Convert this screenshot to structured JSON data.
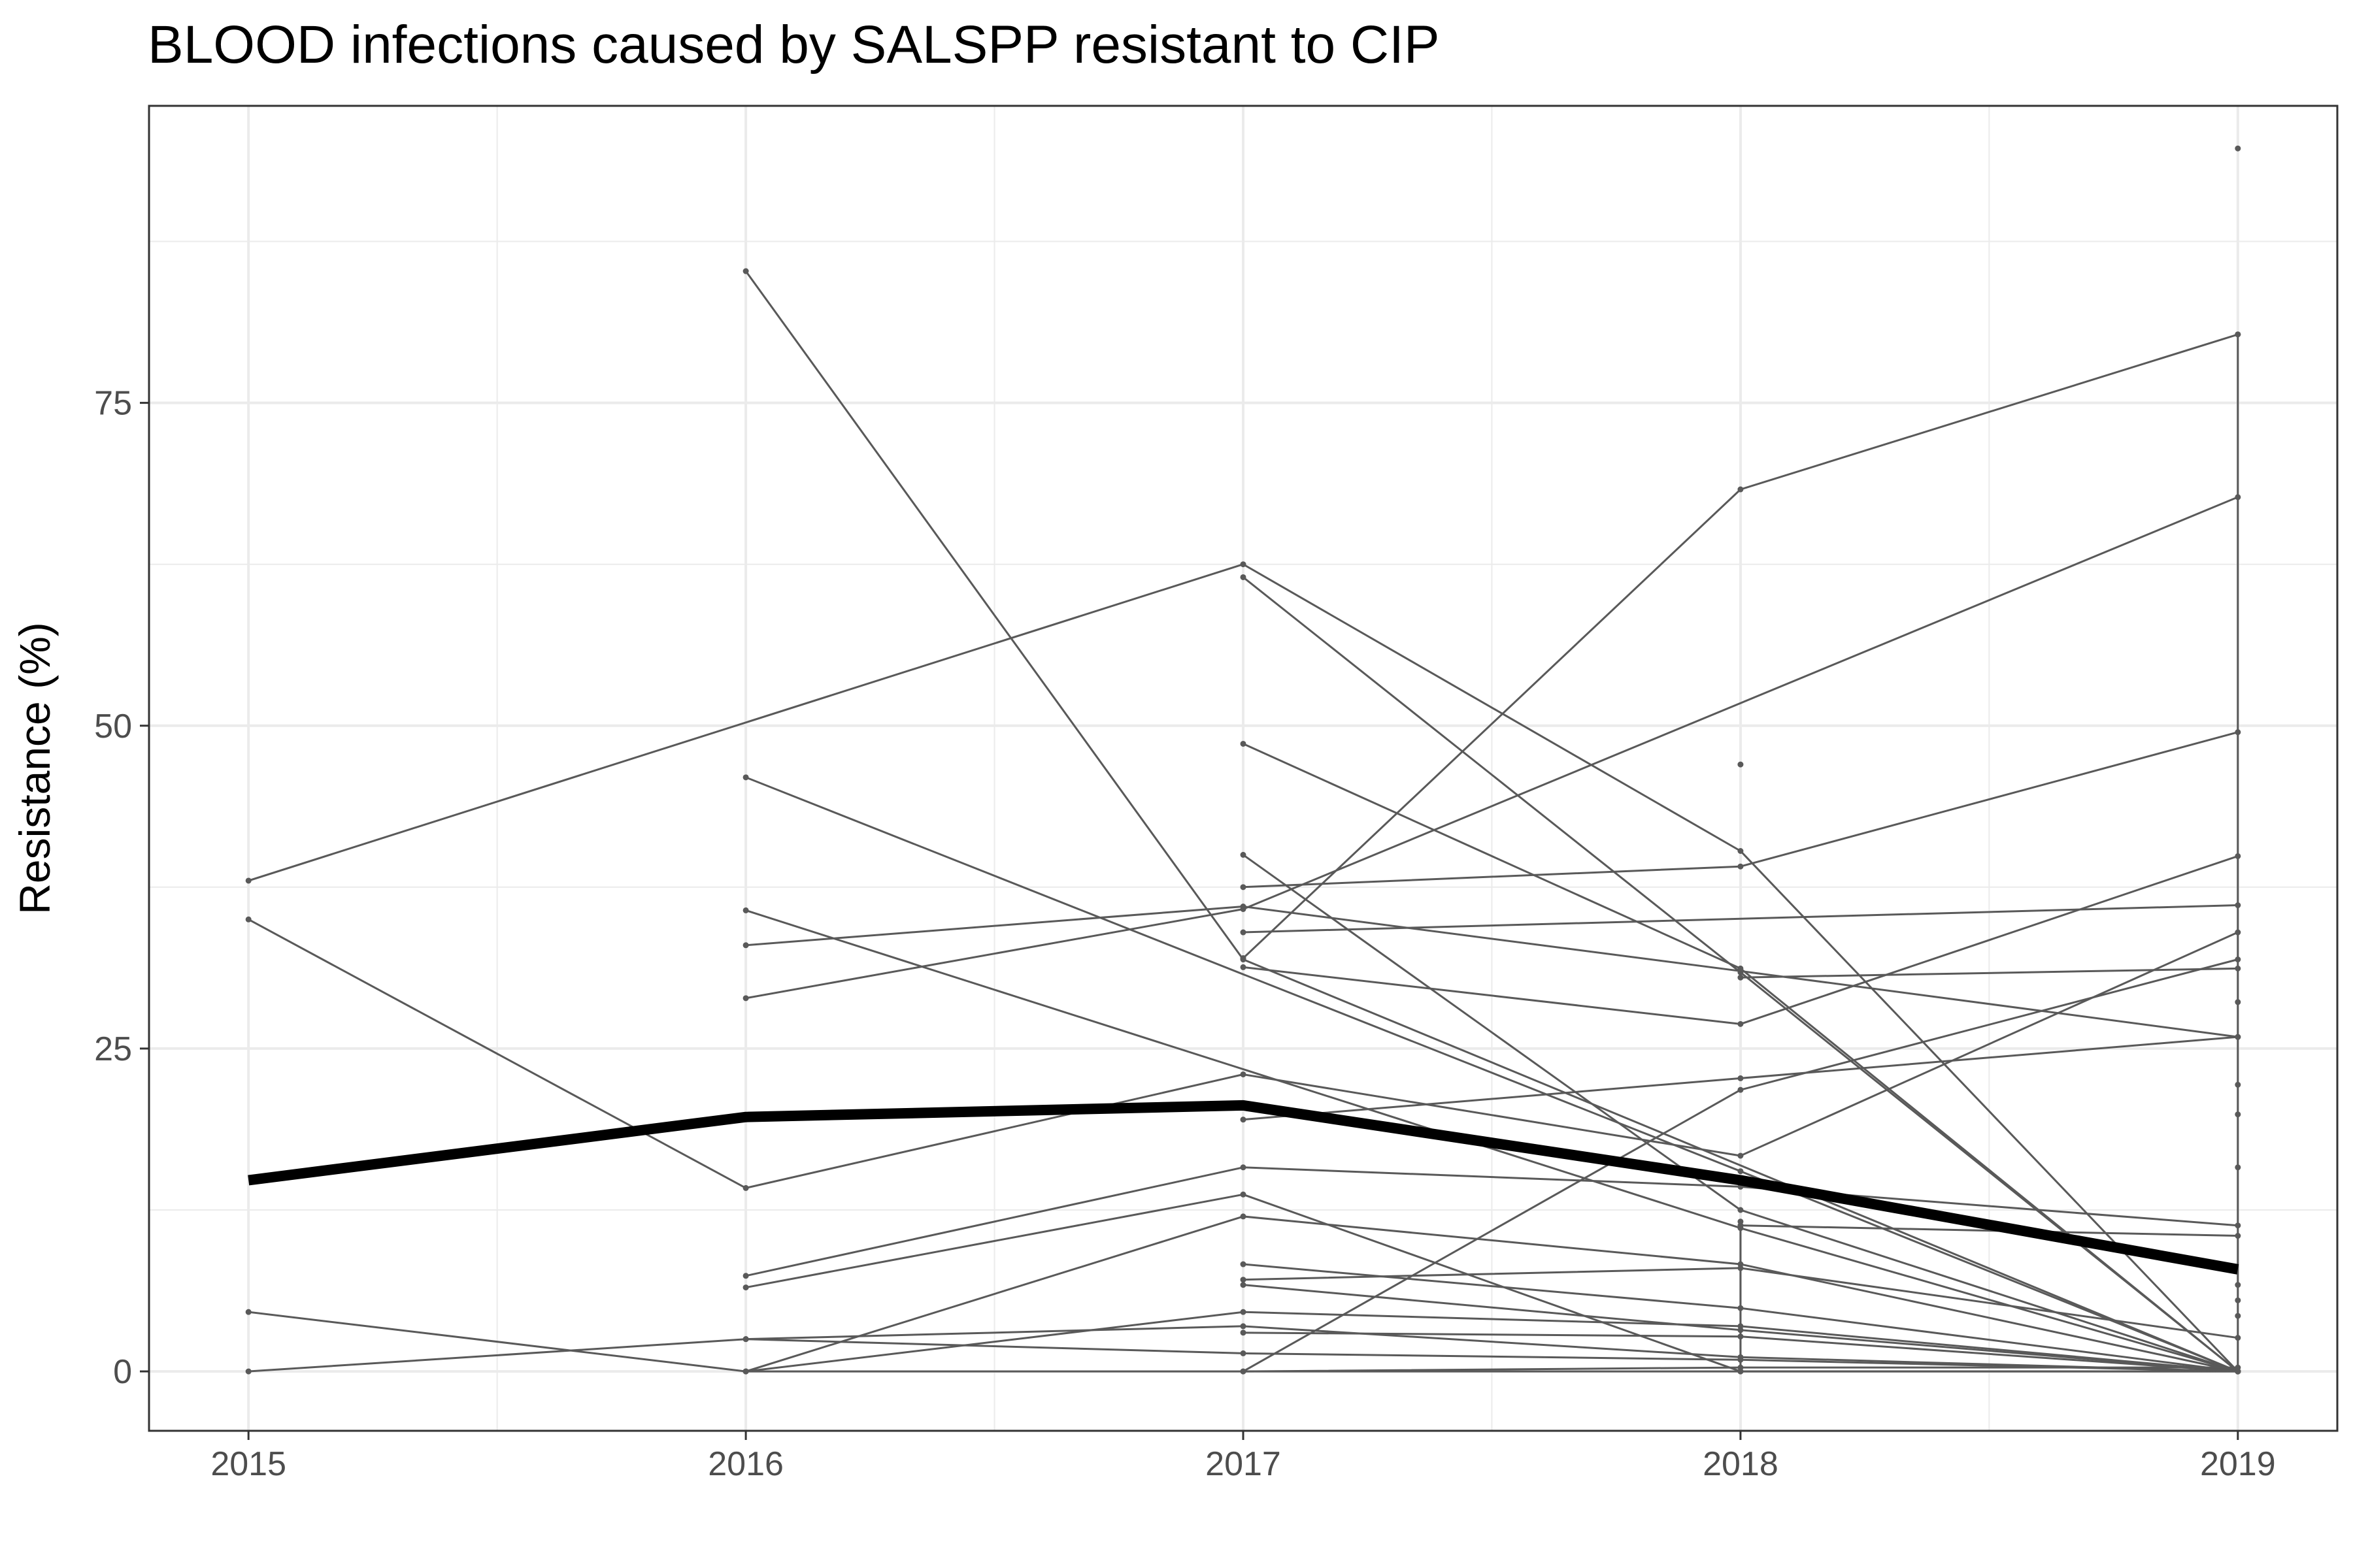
{
  "chart_data": {
    "type": "line",
    "title": "BLOOD infections caused by SALSPP resistant to CIP",
    "xlabel": "",
    "ylabel": "Resistance (%)",
    "x": [
      2015,
      2016,
      2017,
      2018,
      2019
    ],
    "x_ticks": [
      "2015",
      "2016",
      "2017",
      "2018",
      "2019"
    ],
    "y_ticks": [
      "0",
      "25",
      "50",
      "75"
    ],
    "xlim": [
      2014.8,
      2019.2
    ],
    "ylim": [
      -4.6,
      98
    ],
    "grid": true,
    "legend": "none",
    "colors": {
      "series": "#595959",
      "overall": "#000000",
      "grid": "#ebebeb",
      "panel_border": "#333333"
    },
    "overall_series": {
      "x": [
        2015,
        2016,
        2017,
        2018,
        2019
      ],
      "values": [
        14.8,
        19.7,
        20.6,
        14.8,
        7.9
      ]
    },
    "series": [
      {
        "x": [
          2015,
          2017,
          2018,
          2019
        ],
        "values": [
          38,
          62.5,
          40.3,
          0
        ]
      },
      {
        "x": [
          2015,
          2016,
          2017,
          2018,
          2019
        ],
        "values": [
          35,
          14.2,
          23,
          16.7,
          34
        ]
      },
      {
        "x": [
          2015,
          2016,
          2019
        ],
        "values": [
          4.6,
          0,
          0
        ]
      },
      {
        "x": [
          2015,
          2016,
          2017,
          2018,
          2019
        ],
        "values": [
          0,
          2.5,
          1.4,
          0.9,
          0
        ]
      },
      {
        "x": [
          2016,
          2017,
          2019
        ],
        "values": [
          85.2,
          31.9,
          0
        ]
      },
      {
        "x": [
          2016,
          2018,
          2019
        ],
        "values": [
          46,
          15.5,
          0
        ]
      },
      {
        "x": [
          2016,
          2018,
          2019
        ],
        "values": [
          35.7,
          11.1,
          0
        ]
      },
      {
        "x": [
          2016,
          2017,
          2018,
          2019
        ],
        "values": [
          33,
          36,
          31,
          25.9
        ]
      },
      {
        "x": [
          2016,
          2017,
          2019
        ],
        "values": [
          28.9,
          35.8,
          67.7
        ]
      },
      {
        "x": [
          2016,
          2017,
          2018,
          2019
        ],
        "values": [
          7.4,
          15.8,
          14.3,
          11.3
        ]
      },
      {
        "x": [
          2016,
          2017,
          2018,
          2019
        ],
        "values": [
          6.5,
          13.7,
          0,
          0
        ]
      },
      {
        "x": [
          2016,
          2017,
          2018,
          2019
        ],
        "values": [
          0,
          12,
          8.3,
          0
        ]
      },
      {
        "x": [
          2016,
          2017,
          2018,
          2019
        ],
        "values": [
          0,
          4.6,
          3.5,
          0
        ]
      },
      {
        "x": [
          2016,
          2017,
          2018,
          2019
        ],
        "values": [
          2.5,
          3.5,
          1.1,
          0
        ]
      },
      {
        "x": [
          2017,
          2018,
          2019
        ],
        "values": [
          61.5,
          30.9,
          0
        ]
      },
      {
        "x": [
          2017,
          2018,
          2019
        ],
        "values": [
          48.6,
          31.2,
          0
        ]
      },
      {
        "x": [
          2017,
          2018,
          2019
        ],
        "values": [
          40,
          12.5,
          0
        ]
      },
      {
        "x": [
          2017,
          2018,
          2019
        ],
        "values": [
          32,
          68.3,
          80.3
        ]
      },
      {
        "x": [
          2017,
          2018,
          2019
        ],
        "values": [
          37.5,
          39.1,
          49.5
        ]
      },
      {
        "x": [
          2017,
          2018,
          2019
        ],
        "values": [
          31.3,
          26.9,
          39.9
        ]
      },
      {
        "x": [
          2017,
          2018,
          2019
        ],
        "values": [
          19.5,
          22.7,
          25.9
        ]
      },
      {
        "x": [
          2017,
          2019
        ],
        "values": [
          34,
          36.1
        ]
      },
      {
        "x": [
          2017,
          2018,
          2019
        ],
        "values": [
          8.3,
          4.9,
          0
        ]
      },
      {
        "x": [
          2017,
          2018,
          2019
        ],
        "values": [
          7.1,
          8.0,
          2.6
        ]
      },
      {
        "x": [
          2017,
          2018,
          2019
        ],
        "values": [
          6.7,
          3.2,
          0
        ]
      },
      {
        "x": [
          2017,
          2018,
          2019
        ],
        "values": [
          3,
          2.7,
          0
        ]
      },
      {
        "x": [
          2017,
          2018,
          2019
        ],
        "values": [
          0,
          0.3,
          0.3
        ]
      },
      {
        "x": [
          2017,
          2018,
          2019
        ],
        "values": [
          0,
          21.8,
          31.9
        ]
      },
      {
        "x": [
          2018,
          2019
        ],
        "values": [
          30.5,
          31.2
        ]
      },
      {
        "x": [
          2018,
          2019
        ],
        "values": [
          11.3,
          10.5
        ]
      },
      {
        "x": [
          2018,
          2018
        ],
        "values": [
          0,
          11.6
        ]
      },
      {
        "x": [
          2019,
          2019
        ],
        "values": [
          0,
          80.3
        ]
      }
    ],
    "points": [
      {
        "x": 2018,
        "y": 47
      },
      {
        "x": 2019,
        "y": 94.7
      },
      {
        "x": 2019,
        "y": 28.6
      },
      {
        "x": 2019,
        "y": 22.2
      },
      {
        "x": 2019,
        "y": 19.9
      },
      {
        "x": 2019,
        "y": 15.8
      },
      {
        "x": 2019,
        "y": 6.7
      },
      {
        "x": 2019,
        "y": 5.5
      },
      {
        "x": 2019,
        "y": 4.3
      }
    ]
  }
}
